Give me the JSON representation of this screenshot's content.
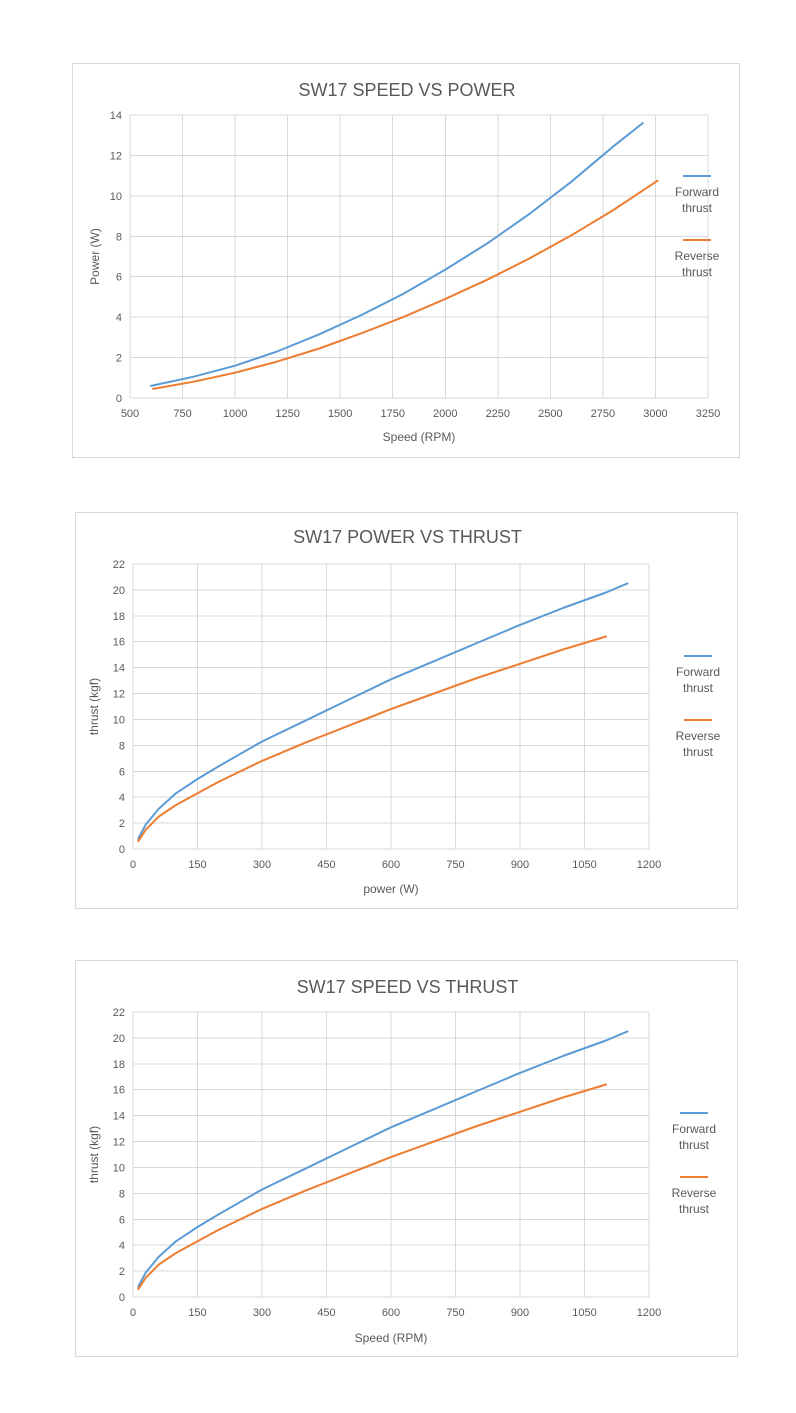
{
  "colors": {
    "forward": "#5b9bd5",
    "reverse": "#ed7d31"
  },
  "chart_data": [
    {
      "type": "line",
      "title": "SW17 SPEED VS POWER",
      "xlabel": "Speed (RPM)",
      "ylabel": "Power (W)",
      "xlim": [
        500,
        3250
      ],
      "ylim": [
        0,
        14
      ],
      "xticks": [
        500,
        750,
        1000,
        1250,
        1500,
        1750,
        2000,
        2250,
        2500,
        2750,
        3000,
        3250
      ],
      "yticks": [
        0,
        2,
        4,
        6,
        8,
        10,
        12,
        14
      ],
      "grid": true,
      "legend_position": "right",
      "series": [
        {
          "name": "Forward thrust",
          "color": "#5b9bd5",
          "x": [
            600,
            800,
            1000,
            1200,
            1400,
            1600,
            1800,
            2000,
            2200,
            2400,
            2600,
            2800,
            2940
          ],
          "y": [
            0.6,
            1.05,
            1.6,
            2.3,
            3.15,
            4.1,
            5.15,
            6.35,
            7.65,
            9.1,
            10.7,
            12.45,
            13.6
          ]
        },
        {
          "name": "Reverse thrust",
          "color": "#ed7d31",
          "x": [
            610,
            800,
            1000,
            1200,
            1400,
            1600,
            1800,
            2000,
            2200,
            2400,
            2600,
            2800,
            3010
          ],
          "y": [
            0.45,
            0.8,
            1.25,
            1.8,
            2.45,
            3.2,
            4.0,
            4.9,
            5.85,
            6.9,
            8.05,
            9.3,
            10.75
          ]
        }
      ]
    },
    {
      "type": "line",
      "title": "SW17 POWER VS THRUST",
      "xlabel": "power (W)",
      "ylabel": "thrust (kgf)",
      "xlim": [
        0,
        1200
      ],
      "ylim": [
        0,
        22
      ],
      "xticks": [
        0,
        150,
        300,
        450,
        600,
        750,
        900,
        1050,
        1200
      ],
      "yticks": [
        0,
        2,
        4,
        6,
        8,
        10,
        12,
        14,
        16,
        18,
        20,
        22
      ],
      "grid": true,
      "legend_position": "right",
      "series": [
        {
          "name": "Forward thrust",
          "color": "#5b9bd5",
          "x": [
            12,
            30,
            60,
            100,
            150,
            200,
            300,
            400,
            500,
            600,
            700,
            800,
            900,
            1000,
            1100,
            1150
          ],
          "y": [
            0.8,
            1.9,
            3.1,
            4.3,
            5.4,
            6.4,
            8.3,
            9.9,
            11.5,
            13.1,
            14.5,
            15.9,
            17.3,
            18.6,
            19.8,
            20.5
          ]
        },
        {
          "name": "Reverse thrust",
          "color": "#ed7d31",
          "x": [
            12,
            30,
            60,
            100,
            150,
            200,
            300,
            400,
            500,
            600,
            700,
            800,
            900,
            1000,
            1100
          ],
          "y": [
            0.6,
            1.5,
            2.5,
            3.4,
            4.3,
            5.2,
            6.8,
            8.2,
            9.5,
            10.8,
            12.0,
            13.2,
            14.3,
            15.4,
            16.4
          ]
        }
      ]
    },
    {
      "type": "line",
      "title": "SW17 SPEED VS THRUST",
      "xlabel": "Speed (RPM)",
      "ylabel": "thrust (kgf)",
      "xlim": [
        0,
        1200
      ],
      "ylim": [
        0,
        22
      ],
      "xticks": [
        0,
        150,
        300,
        450,
        600,
        750,
        900,
        1050,
        1200
      ],
      "yticks": [
        0,
        2,
        4,
        6,
        8,
        10,
        12,
        14,
        16,
        18,
        20,
        22
      ],
      "grid": true,
      "legend_position": "right",
      "series": [
        {
          "name": "Forward thrust",
          "color": "#5b9bd5",
          "x": [
            12,
            30,
            60,
            100,
            150,
            200,
            300,
            400,
            500,
            600,
            700,
            800,
            900,
            1000,
            1100,
            1150
          ],
          "y": [
            0.8,
            1.9,
            3.1,
            4.3,
            5.4,
            6.4,
            8.3,
            9.9,
            11.5,
            13.1,
            14.5,
            15.9,
            17.3,
            18.6,
            19.8,
            20.5
          ]
        },
        {
          "name": "Reverse thrust",
          "color": "#ed7d31",
          "x": [
            12,
            30,
            60,
            100,
            150,
            200,
            300,
            400,
            500,
            600,
            700,
            800,
            900,
            1000,
            1100
          ],
          "y": [
            0.6,
            1.5,
            2.5,
            3.4,
            4.3,
            5.2,
            6.8,
            8.2,
            9.5,
            10.8,
            12.0,
            13.2,
            14.3,
            15.4,
            16.4
          ]
        }
      ]
    }
  ],
  "legend": {
    "forward_line1": "Forward",
    "forward_line2": "thrust",
    "reverse_line1": "Reverse",
    "reverse_line2": "thrust"
  }
}
